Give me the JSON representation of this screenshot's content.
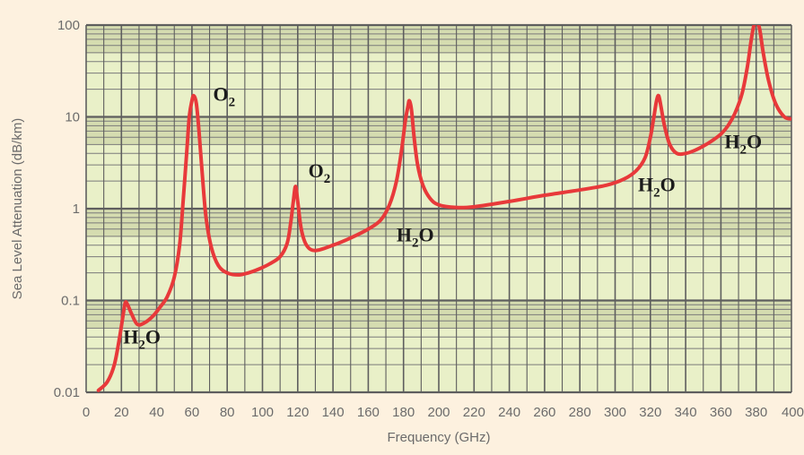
{
  "colors": {
    "background": "#fdf1df",
    "plot_background": "#e9f0c8",
    "band_dark": "#d5dcb0",
    "grid_major": "#5e5e5e",
    "grid_minor": "#7a7a7a",
    "curve": "#e8393a",
    "tick_text": "#6b6b6b",
    "annotation_text": "#1b1b1b"
  },
  "chart_data": {
    "type": "line",
    "title": "",
    "xlabel": "Frequency (GHz)",
    "ylabel": "Sea Level Attenuation (dB/km)",
    "xlim": [
      0,
      400
    ],
    "ylim": [
      0.01,
      100
    ],
    "yscale": "log",
    "grid": true,
    "legend": "none",
    "x_ticks": [
      "0",
      "20",
      "40",
      "60",
      "80",
      "100",
      "120",
      "140",
      "160",
      "180",
      "200",
      "220",
      "240",
      "260",
      "280",
      "300",
      "320",
      "340",
      "360",
      "380",
      "400"
    ],
    "y_ticks": [
      "0.01",
      "0.1",
      "1",
      "10",
      "100"
    ],
    "series": [
      {
        "color": "#e8393a",
        "x": [
          7,
          12,
          16,
          19,
          21,
          22.2,
          23.5,
          26,
          29,
          33,
          38,
          42,
          46,
          50,
          53,
          55,
          57,
          58.5,
          60,
          61,
          62.5,
          64,
          66,
          68,
          71,
          75,
          80,
          86,
          92,
          98,
          104,
          110,
          114,
          116,
          117.5,
          118.75,
          120,
          122,
          125,
          130,
          140,
          150,
          160,
          167,
          172,
          176,
          179,
          181,
          182.5,
          183.3,
          184.5,
          186,
          188,
          191,
          195,
          200,
          210,
          220,
          240,
          260,
          280,
          295,
          305,
          312,
          317,
          320,
          322,
          323.5,
          324.7,
          326,
          328,
          331,
          335,
          340,
          345,
          350,
          355,
          360,
          364,
          368,
          372,
          375,
          377,
          378.5,
          380.2,
          382,
          384,
          387,
          391,
          396,
          400
        ],
        "y": [
          0.0105,
          0.013,
          0.02,
          0.04,
          0.07,
          0.095,
          0.09,
          0.07,
          0.055,
          0.057,
          0.068,
          0.085,
          0.11,
          0.18,
          0.4,
          1.2,
          4,
          10,
          15,
          17,
          14,
          7,
          2.2,
          0.8,
          0.38,
          0.24,
          0.2,
          0.19,
          0.2,
          0.22,
          0.25,
          0.3,
          0.42,
          0.7,
          1.2,
          1.75,
          1.2,
          0.6,
          0.4,
          0.35,
          0.4,
          0.48,
          0.6,
          0.75,
          1.1,
          2,
          4.5,
          9,
          13,
          15,
          12,
          6,
          3,
          1.8,
          1.3,
          1.1,
          1.03,
          1.05,
          1.2,
          1.4,
          1.6,
          1.8,
          2.1,
          2.6,
          3.6,
          6,
          10,
          15,
          17,
          13,
          8,
          5,
          4,
          4,
          4.3,
          4.8,
          5.5,
          6.5,
          8,
          11,
          18,
          35,
          65,
          95,
          110,
          90,
          50,
          25,
          14,
          10,
          9.5
        ]
      }
    ],
    "annotations": [
      {
        "base": "H",
        "sub": "2",
        "rest": "O",
        "x": 21,
        "y": 0.034
      },
      {
        "base": "O",
        "sub": "2",
        "rest": "",
        "x": 72,
        "y": 15
      },
      {
        "base": "O",
        "sub": "2",
        "rest": "",
        "x": 126,
        "y": 2.2
      },
      {
        "base": "H",
        "sub": "2",
        "rest": "O",
        "x": 176,
        "y": 0.44
      },
      {
        "base": "H",
        "sub": "2",
        "rest": "O",
        "x": 313,
        "y": 1.55
      },
      {
        "base": "H",
        "sub": "2",
        "rest": "O",
        "x": 362,
        "y": 4.55
      }
    ]
  }
}
